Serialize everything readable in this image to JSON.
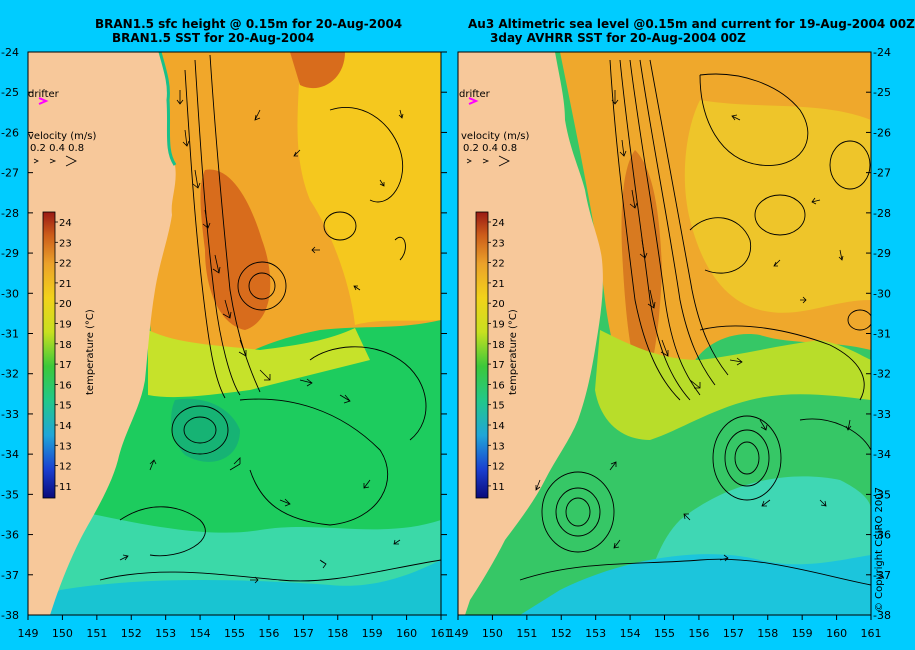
{
  "left_panel": {
    "title_line1": "BRAN1.5 sfc height @ 0.15m for 20-Aug-2004",
    "title_line2": "BRAN1.5 SST for 20-Aug-2004"
  },
  "right_panel": {
    "title_line1": "Au3 Altimetric sea level  @0.15m and current for 19-Aug-2004 00Z",
    "title_line2": "3day AVHRR SST for 20-Aug-2004 00Z"
  },
  "drifter_label": "drifter",
  "velocity_legend": {
    "title": "velocity (m/s)",
    "values": "0.2 0.4 0.8"
  },
  "colorbar": {
    "label": "temperature (°C)",
    "ticks": [
      "24",
      "23",
      "22",
      "21",
      "20",
      "19",
      "18",
      "17",
      "16",
      "15",
      "14",
      "13",
      "12",
      "11"
    ]
  },
  "lat_ticks": [
    "-24",
    "-25",
    "-26",
    "-27",
    "-28",
    "-29",
    "-30",
    "-31",
    "-32",
    "-33",
    "-34",
    "-35",
    "-36",
    "-37",
    "-38"
  ],
  "lon_ticks": [
    "149",
    "150",
    "151",
    "152",
    "153",
    "154",
    "155",
    "156",
    "157",
    "158",
    "159",
    "160",
    "161"
  ],
  "copyright": "© Copyright CSIRO 2007",
  "colors": {
    "background": "#00ccff",
    "land": "#f7c89a",
    "drifter": "#ff00ff"
  },
  "map_extent": {
    "lon": [
      149,
      161
    ],
    "lat": [
      -38,
      -24
    ]
  }
}
